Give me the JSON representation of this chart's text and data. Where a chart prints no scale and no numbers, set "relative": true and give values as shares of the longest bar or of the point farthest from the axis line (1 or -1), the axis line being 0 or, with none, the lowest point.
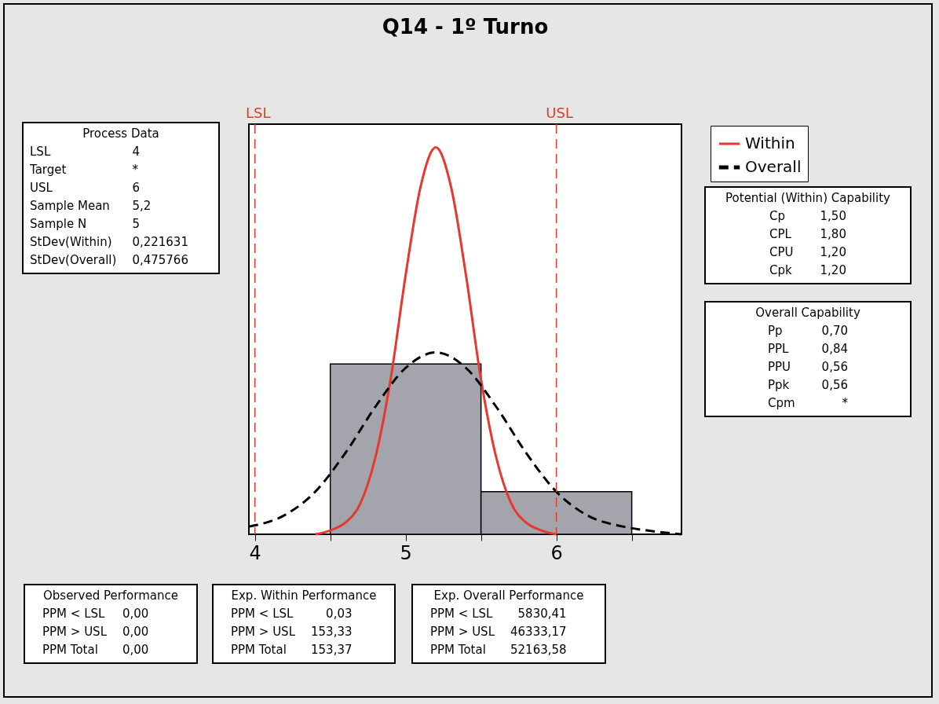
{
  "chart_data": [
    {
      "type": "histogram",
      "title": "Q14 - 1º Turno",
      "relative": true,
      "bins": [
        4.5,
        5.5,
        6.5
      ],
      "values": [
        0.44,
        0.11
      ],
      "color": "#a4a4ac",
      "series": [
        {
          "name": "Within",
          "type": "line",
          "color": "#e8372c",
          "line_style": "solid",
          "x": [
            4.4,
            4.5,
            4.6,
            4.7,
            4.8,
            4.9,
            5.0,
            5.1,
            5.2,
            5.3,
            5.4,
            5.5,
            5.6,
            5.7,
            5.8,
            5.9,
            6.0
          ],
          "values": [
            0.0,
            0.01,
            0.03,
            0.08,
            0.2,
            0.4,
            0.67,
            0.9,
            1.0,
            0.9,
            0.67,
            0.4,
            0.2,
            0.08,
            0.03,
            0.01,
            0.0
          ]
        },
        {
          "name": "Overall",
          "type": "line",
          "color": "#000000",
          "line_style": "dashed",
          "x": [
            3.96,
            4.2,
            4.4,
            4.6,
            4.8,
            5.0,
            5.2,
            5.4,
            5.6,
            5.8,
            6.0,
            6.2,
            6.44,
            6.6,
            6.83
          ],
          "values": [
            0.02,
            0.05,
            0.11,
            0.21,
            0.33,
            0.43,
            0.47,
            0.43,
            0.33,
            0.21,
            0.11,
            0.05,
            0.02,
            0.01,
            0.0
          ]
        }
      ],
      "xlim": [
        3.96,
        6.83
      ],
      "xticks": [
        4,
        {
          "value": 4.5,
          "label": null
        },
        5,
        {
          "value": 5.5,
          "label": null
        },
        6,
        {
          "value": 6.5,
          "label": null
        }
      ],
      "ref_lines": [
        {
          "axis": "x",
          "value": 4,
          "label": "LSL",
          "color": "#e03a30",
          "line_style": "dashed"
        },
        {
          "axis": "x",
          "value": 6,
          "label": "USL",
          "color": "#e03a30",
          "line_style": "dashed"
        }
      ],
      "legend": "top right",
      "grid": false
    },
    {
      "type": "other",
      "title": "Process Data",
      "categories": [
        "LSL",
        "Target",
        "USL",
        "Sample Mean",
        "Sample N",
        "StDev(Within)",
        "StDev(Overall)"
      ],
      "value_labels": [
        "4",
        "*",
        "6",
        "5,2",
        "5",
        "0,221631",
        "0,475766"
      ]
    },
    {
      "type": "other",
      "title": "Potential (Within) Capability",
      "categories": [
        "Cp",
        "CPL",
        "CPU",
        "Cpk"
      ],
      "value_labels": [
        "1,50",
        "1,80",
        "1,20",
        "1,20"
      ]
    },
    {
      "type": "other",
      "title": "Overall Capability",
      "categories": [
        "Pp",
        "PPL",
        "PPU",
        "Ppk",
        "Cpm"
      ],
      "value_labels": [
        "0,70",
        "0,84",
        "0,56",
        "0,56",
        "*"
      ]
    },
    {
      "type": "other",
      "title": "Observed Performance",
      "categories": [
        "PPM < LSL",
        "PPM > USL",
        "PPM Total"
      ],
      "value_labels": [
        "0,00",
        "0,00",
        "0,00"
      ]
    },
    {
      "type": "other",
      "title": "Exp. Within Performance",
      "categories": [
        "PPM < LSL",
        "PPM > USL",
        "PPM Total"
      ],
      "value_labels": [
        "0,03",
        "153,33",
        "153,37"
      ]
    },
    {
      "type": "other",
      "title": "Exp. Overall Performance",
      "categories": [
        "PPM < LSL",
        "PPM > USL",
        "PPM Total"
      ],
      "value_labels": [
        "5830,41",
        "46333,17",
        "52163,58"
      ]
    }
  ]
}
